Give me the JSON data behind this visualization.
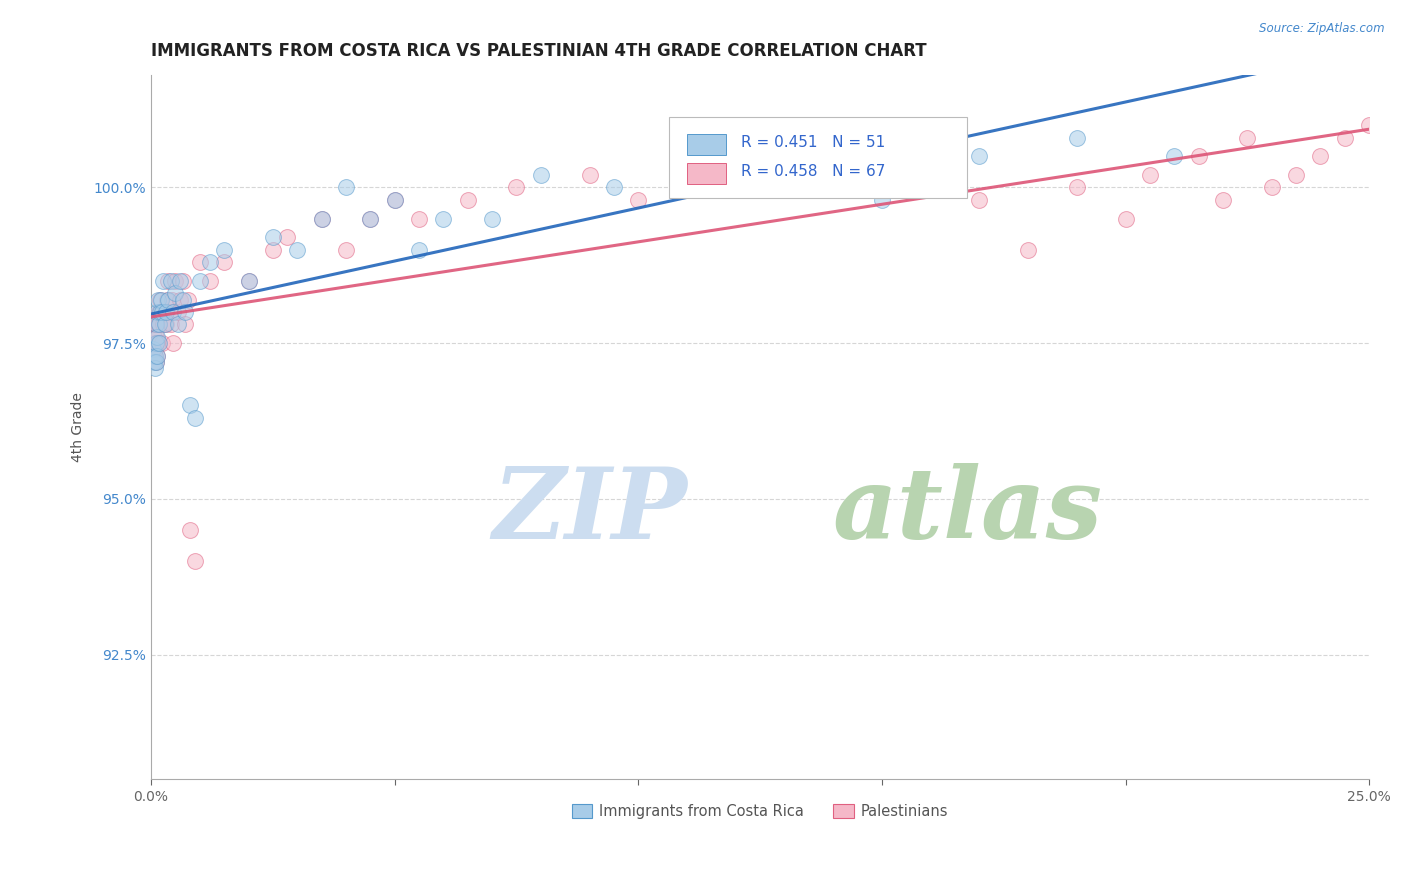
{
  "title": "IMMIGRANTS FROM COSTA RICA VS PALESTINIAN 4TH GRADE CORRELATION CHART",
  "source_text": "Source: ZipAtlas.com",
  "ylabel": "4th Grade",
  "xlim": [
    0.0,
    25.0
  ],
  "ylim": [
    90.5,
    101.8
  ],
  "xticks": [
    0.0,
    5.0,
    10.0,
    15.0,
    20.0,
    25.0
  ],
  "xticklabels": [
    "0.0%",
    "",
    "",
    "",
    "",
    "25.0%"
  ],
  "yticks": [
    92.5,
    95.0,
    97.5,
    100.0
  ],
  "yticklabels": [
    "92.5%",
    "95.0%",
    "97.5%",
    "100.0%"
  ],
  "legend_labels": [
    "Immigrants from Costa Rica",
    "Palestinians"
  ],
  "blue_color": "#a8cce8",
  "pink_color": "#f5b8c8",
  "blue_edge_color": "#5599cc",
  "pink_edge_color": "#e06080",
  "blue_line_color": "#2266bb",
  "pink_line_color": "#dd5577",
  "R_blue": 0.451,
  "N_blue": 51,
  "R_pink": 0.458,
  "N_pink": 67,
  "bg_color": "#ffffff",
  "grid_color": "#cccccc",
  "title_fontsize": 12,
  "axis_label_fontsize": 10,
  "tick_fontsize": 10,
  "blue_x": [
    0.05,
    0.07,
    0.08,
    0.09,
    0.1,
    0.1,
    0.11,
    0.12,
    0.13,
    0.13,
    0.15,
    0.16,
    0.17,
    0.18,
    0.2,
    0.22,
    0.25,
    0.28,
    0.3,
    0.35,
    0.4,
    0.45,
    0.5,
    0.55,
    0.6,
    0.65,
    0.7,
    0.8,
    0.9,
    1.0,
    1.2,
    1.5,
    2.0,
    2.5,
    3.0,
    3.5,
    4.0,
    4.5,
    5.0,
    5.5,
    6.0,
    7.0,
    8.0,
    9.5,
    11.0,
    12.0,
    13.5,
    15.0,
    17.0,
    19.0,
    21.0
  ],
  "blue_y": [
    97.4,
    97.2,
    97.3,
    97.1,
    97.2,
    97.5,
    97.8,
    97.3,
    97.6,
    98.0,
    98.2,
    97.5,
    97.8,
    98.0,
    98.2,
    98.0,
    98.5,
    97.8,
    98.0,
    98.2,
    98.5,
    98.0,
    98.3,
    97.8,
    98.5,
    98.2,
    98.0,
    96.5,
    96.3,
    98.5,
    98.8,
    99.0,
    98.5,
    99.2,
    99.0,
    99.5,
    100.0,
    99.5,
    99.8,
    99.0,
    99.5,
    99.5,
    100.2,
    100.0,
    100.2,
    100.5,
    100.2,
    99.8,
    100.5,
    100.8,
    100.5
  ],
  "pink_x": [
    0.03,
    0.05,
    0.06,
    0.07,
    0.08,
    0.09,
    0.1,
    0.1,
    0.11,
    0.12,
    0.13,
    0.14,
    0.15,
    0.16,
    0.17,
    0.18,
    0.2,
    0.22,
    0.25,
    0.28,
    0.3,
    0.32,
    0.35,
    0.38,
    0.4,
    0.43,
    0.45,
    0.5,
    0.55,
    0.6,
    0.65,
    0.7,
    0.75,
    0.8,
    0.9,
    1.0,
    1.2,
    1.5,
    2.0,
    2.5,
    2.8,
    3.5,
    4.0,
    4.5,
    5.0,
    5.5,
    6.5,
    7.5,
    9.0,
    10.0,
    11.5,
    13.0,
    14.0,
    15.5,
    17.0,
    19.0,
    20.5,
    21.5,
    22.5,
    23.5,
    24.0,
    24.5,
    25.0,
    23.0,
    22.0,
    20.0,
    18.0
  ],
  "pink_y": [
    97.8,
    97.5,
    97.3,
    97.6,
    97.8,
    97.4,
    97.2,
    97.6,
    97.8,
    97.5,
    97.3,
    97.8,
    97.5,
    98.0,
    97.8,
    98.2,
    98.0,
    97.5,
    97.8,
    98.0,
    97.8,
    98.2,
    98.5,
    98.0,
    97.8,
    98.2,
    97.5,
    98.5,
    98.0,
    98.2,
    98.5,
    97.8,
    98.2,
    94.5,
    94.0,
    98.8,
    98.5,
    98.8,
    98.5,
    99.0,
    99.2,
    99.5,
    99.0,
    99.5,
    99.8,
    99.5,
    99.8,
    100.0,
    100.2,
    99.8,
    100.5,
    100.0,
    100.2,
    100.5,
    99.8,
    100.0,
    100.2,
    100.5,
    100.8,
    100.2,
    100.5,
    100.8,
    101.0,
    100.0,
    99.8,
    99.5,
    99.0
  ]
}
